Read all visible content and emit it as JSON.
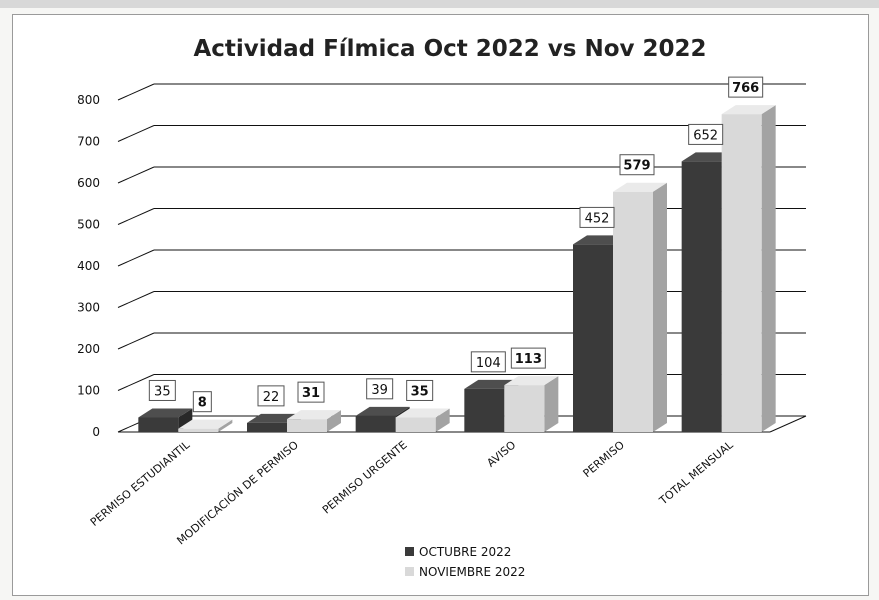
{
  "chart_data": {
    "type": "bar",
    "title": "Actividad Fílmica Oct 2022 vs Nov 2022",
    "categories": [
      "PERMISO ESTUDIANTIL",
      "MODIFICACIÓN DE PERMISO",
      "PERMISO URGENTE",
      "AVISO",
      "PERMISO",
      "TOTAL MENSUAL"
    ],
    "series": [
      {
        "name": "OCTUBRE 2022",
        "values": [
          35,
          22,
          39,
          104,
          452,
          652
        ],
        "color": "#3a3a3a"
      },
      {
        "name": "NOVIEMBRE 2022",
        "values": [
          8,
          31,
          35,
          113,
          579,
          766
        ],
        "color": "#d9d9d9"
      }
    ],
    "ylim": [
      0,
      800
    ],
    "yticks": [
      0,
      100,
      200,
      300,
      400,
      500,
      600,
      700,
      800
    ],
    "grid": true,
    "legend_position": "bottom",
    "style": "3d-clustered-columns"
  }
}
